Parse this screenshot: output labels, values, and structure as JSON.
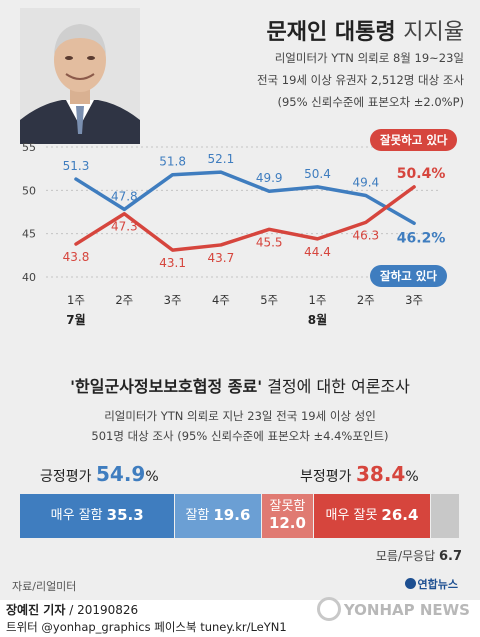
{
  "header": {
    "title_bold": "문재인 대통령",
    "title_light": "지지율",
    "subtitle_lines": [
      "리얼미터가 YTN 의뢰로 8월 19~23일",
      "전국 19세 이상 유권자 2,512명 대상 조사",
      "(95% 신뢰수준에 표본오차 ±2.0%P)"
    ]
  },
  "chart_data": {
    "type": "line",
    "x": [
      "1주",
      "2주",
      "3주",
      "4주",
      "5주",
      "1주",
      "2주",
      "3주"
    ],
    "month_labels": [
      {
        "index": 0,
        "label": "7월"
      },
      {
        "index": 5,
        "label": "8월"
      }
    ],
    "ylim": [
      40,
      55
    ],
    "yticks": [
      40,
      45,
      50,
      55
    ],
    "series": [
      {
        "name": "잘하고 있다",
        "color": "#3f7dbf",
        "values": [
          51.3,
          47.8,
          51.8,
          52.1,
          49.9,
          50.4,
          49.4,
          46.2
        ],
        "labels": [
          "51.3",
          "47.8",
          "51.8",
          "52.1",
          "49.9",
          "50.4",
          "49.4",
          "46.2%"
        ]
      },
      {
        "name": "잘못하고 있다",
        "color": "#d6453d",
        "values": [
          43.8,
          47.3,
          43.1,
          43.7,
          45.5,
          44.4,
          46.3,
          50.4
        ],
        "labels": [
          "43.8",
          "47.3",
          "43.1",
          "43.7",
          "45.5",
          "44.4",
          "46.3",
          "50.4%"
        ]
      }
    ]
  },
  "survey": {
    "title_quote": "'한일군사정보보호협정 종료'",
    "title_rest": " 결정에 대한 여론조사",
    "desc_lines": [
      "리얼미터가 YTN 의뢰로 지난 23일 전국 19세 이상 성인",
      "501명 대상 조사 (95% 신뢰수준에 표본오차 ±4.4%포인트)"
    ],
    "positive": {
      "label": "긍정평가",
      "value": "54.9",
      "unit": "%"
    },
    "negative": {
      "label": "부정평가",
      "value": "38.4",
      "unit": "%"
    },
    "bars": [
      {
        "label": "매우 잘함",
        "value": 35.3,
        "color": "#3f7dbf"
      },
      {
        "label": "잘함",
        "value": 19.6,
        "color": "#6b9fd4"
      },
      {
        "label": "잘못함",
        "value": 12.0,
        "color": "#e07a72"
      },
      {
        "label": "매우 잘못",
        "value": 26.4,
        "color": "#d6453d"
      },
      {
        "label": "",
        "value": 6.7,
        "color": "#c8c8c8"
      }
    ],
    "undecided": {
      "label": "모름/무응답",
      "value": "6.7"
    }
  },
  "source": "자료/리얼미터",
  "logo_small": "연합뉴스",
  "author": {
    "name": "장예진 기자",
    "date": " / 20190826"
  },
  "social": "트위터 @yonhap_graphics  페이스북 tuney.kr/LeYN1",
  "watermark": "YONHAP NEWS"
}
